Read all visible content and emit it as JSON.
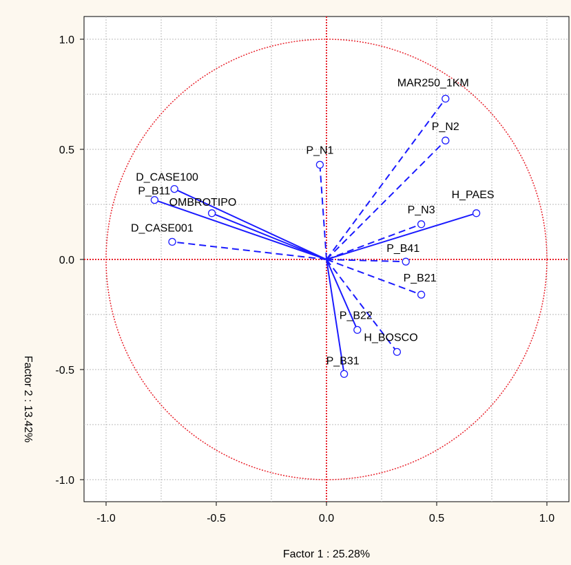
{
  "chart_data": {
    "type": "scatter",
    "subtype": "pca-correlation-circle",
    "xlabel": "Factor 1 : 25.28%",
    "ylabel": "Factor 2 : 13.42%",
    "xlim": [
      -1.1,
      1.1
    ],
    "ylim": [
      -1.1,
      1.1
    ],
    "xticks": [
      "-1.0",
      "-0.5",
      "0.0",
      "0.5",
      "1.0"
    ],
    "yticks": [
      "1.0",
      "0.5",
      "0.0",
      "-0.5",
      "-1.0"
    ],
    "grid": true,
    "unit_circle": true,
    "colors": {
      "vectors": "#1a1aff",
      "circle_axes": "#e8202a",
      "grid": "#b8b8b8",
      "background": "#fdf8ef"
    },
    "points": [
      {
        "label": "MAR250_1KM",
        "x": 0.54,
        "y": 0.73,
        "style": "dashed"
      },
      {
        "label": "P_N2",
        "x": 0.54,
        "y": 0.54,
        "style": "dashed"
      },
      {
        "label": "P_N1",
        "x": -0.03,
        "y": 0.43,
        "style": "dashed"
      },
      {
        "label": "D_CASE100",
        "x": -0.69,
        "y": 0.32,
        "style": "solid"
      },
      {
        "label": "P_B11",
        "x": -0.78,
        "y": 0.27,
        "style": "solid"
      },
      {
        "label": "OMBROTIPO",
        "x": -0.52,
        "y": 0.21,
        "style": "solid"
      },
      {
        "label": "H_PAES",
        "x": 0.68,
        "y": 0.21,
        "style": "solid"
      },
      {
        "label": "P_N3",
        "x": 0.43,
        "y": 0.16,
        "style": "dashed"
      },
      {
        "label": "D_CASE001",
        "x": -0.7,
        "y": 0.08,
        "style": "dashed"
      },
      {
        "label": "P_B41",
        "x": 0.36,
        "y": -0.01,
        "style": "dashed"
      },
      {
        "label": "P_B21",
        "x": 0.43,
        "y": -0.16,
        "style": "dashed"
      },
      {
        "label": "P_B22",
        "x": 0.14,
        "y": -0.32,
        "style": "solid"
      },
      {
        "label": "H_BOSCO",
        "x": 0.32,
        "y": -0.42,
        "style": "dashed"
      },
      {
        "label": "P_B31",
        "x": 0.08,
        "y": -0.52,
        "style": "solid"
      }
    ]
  }
}
